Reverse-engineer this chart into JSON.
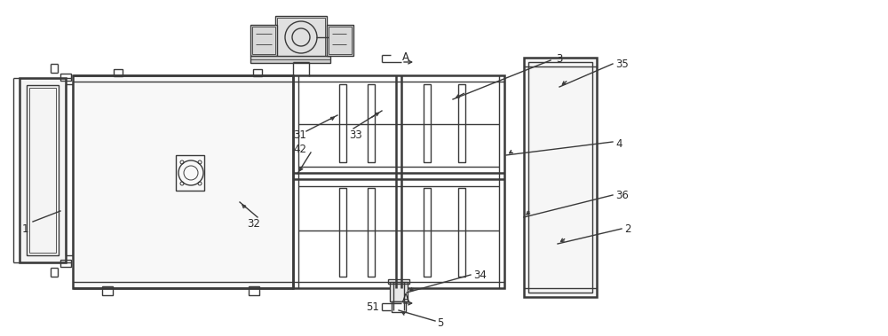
{
  "bg_color": "#ffffff",
  "line_color": "#3a3a3a",
  "line_width": 1.0,
  "thick_line": 1.8,
  "fig_width": 10.0,
  "fig_height": 3.79,
  "dpi": 100
}
